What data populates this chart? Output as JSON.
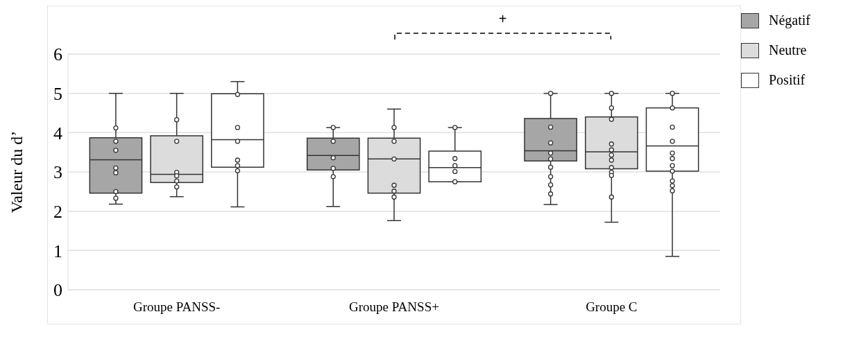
{
  "chart_data": {
    "type": "box",
    "ylabel": "Valeur du d’",
    "categories": [
      "Groupe PANSS-",
      "Groupe PANSS+",
      "Groupe C"
    ],
    "ylim": [
      0,
      6
    ],
    "yticks": [
      0,
      1,
      2,
      3,
      4,
      5,
      6
    ],
    "grid": "y",
    "legend": "right",
    "annotations": [
      "+"
    ],
    "series": [
      {
        "name": "Négatif",
        "color": "#a6a6a6",
        "boxes": [
          {
            "low": 2.18,
            "q1": 2.46,
            "median": 3.31,
            "q3": 3.87,
            "high": 5.0
          },
          {
            "low": 2.12,
            "q1": 3.05,
            "median": 3.42,
            "q3": 3.86,
            "high": 4.13
          },
          {
            "low": 2.17,
            "q1": 3.28,
            "median": 3.54,
            "q3": 4.36,
            "high": 5.0
          }
        ]
      },
      {
        "name": "Neutre",
        "color": "#dcdcdc",
        "boxes": [
          {
            "low": 2.37,
            "q1": 2.73,
            "median": 2.94,
            "q3": 3.92,
            "high": 5.0
          },
          {
            "low": 1.76,
            "q1": 2.46,
            "median": 3.33,
            "q3": 3.86,
            "high": 4.6
          },
          {
            "low": 1.72,
            "q1": 3.08,
            "median": 3.51,
            "q3": 4.4,
            "high": 5.0
          }
        ]
      },
      {
        "name": "Positif",
        "color": "#ffffff",
        "boxes": [
          {
            "low": 2.11,
            "q1": 3.12,
            "median": 3.82,
            "q3": 4.99,
            "high": 5.3
          },
          {
            "low": 2.75,
            "q1": 2.75,
            "median": 3.11,
            "q3": 3.53,
            "high": 4.13
          },
          {
            "low": 0.85,
            "q1": 3.02,
            "median": 3.66,
            "q3": 4.63,
            "high": 5.0
          }
        ]
      },
      {
        "type": "scatter",
        "color": "#ffffff",
        "x": [
          "Groupe PANSS-",
          "Groupe PANSS-",
          "Groupe PANSS-",
          "Groupe PANSS-",
          "Groupe PANSS-",
          "Groupe PANSS-",
          "Groupe PANSS-",
          "Groupe PANSS+",
          "Groupe PANSS+",
          "Groupe PANSS+",
          "Groupe PANSS+",
          "Groupe PANSS+",
          "Groupe C",
          "Groupe C",
          "Groupe C",
          "Groupe C",
          "Groupe C",
          "Groupe C",
          "Groupe C",
          "Groupe C",
          "Groupe C"
        ],
        "values": [
          4.12,
          3.78,
          3.55,
          3.1,
          2.98,
          2.5,
          2.33,
          4.13,
          3.78,
          3.36,
          3.09,
          2.88,
          5.0,
          4.14,
          3.74,
          3.48,
          3.33,
          3.12,
          2.88,
          2.67,
          2.44
        ]
      },
      {
        "type": "scatter",
        "color": "#ffffff",
        "x": [
          "Groupe PANSS-",
          "Groupe PANSS-",
          "Groupe PANSS-",
          "Groupe PANSS-",
          "Groupe PANSS-",
          "Groupe PANSS-",
          "Groupe PANSS+",
          "Groupe PANSS+",
          "Groupe PANSS+",
          "Groupe PANSS+",
          "Groupe PANSS+",
          "Groupe PANSS+",
          "Groupe C",
          "Groupe C",
          "Groupe C",
          "Groupe C",
          "Groupe C",
          "Groupe C",
          "Groupe C",
          "Groupe C",
          "Groupe C",
          "Groupe C",
          "Groupe C"
        ],
        "values": [
          4.33,
          3.78,
          2.99,
          2.9,
          2.77,
          2.62,
          4.13,
          3.78,
          3.33,
          2.66,
          2.51,
          2.36,
          5.0,
          4.63,
          4.34,
          3.71,
          3.56,
          3.43,
          3.3,
          3.11,
          2.99,
          2.91,
          2.36
        ]
      },
      {
        "type": "scatter",
        "color": "#ffffff",
        "x": [
          "Groupe PANSS-",
          "Groupe PANSS-",
          "Groupe PANSS-",
          "Groupe PANSS-",
          "Groupe PANSS-",
          "Groupe PANSS-",
          "Groupe PANSS+",
          "Groupe PANSS+",
          "Groupe PANSS+",
          "Groupe PANSS+",
          "Groupe PANSS+",
          "Groupe C",
          "Groupe C",
          "Groupe C",
          "Groupe C",
          "Groupe C",
          "Groupe C",
          "Groupe C",
          "Groupe C",
          "Groupe C",
          "Groupe C",
          "Groupe C"
        ],
        "values": [
          4.97,
          4.13,
          3.78,
          3.3,
          3.16,
          3.03,
          4.13,
          3.34,
          3.16,
          3.01,
          2.75,
          5.0,
          4.63,
          4.14,
          3.78,
          3.48,
          3.34,
          3.16,
          3.02,
          2.77,
          2.65,
          2.52
        ]
      }
    ]
  }
}
